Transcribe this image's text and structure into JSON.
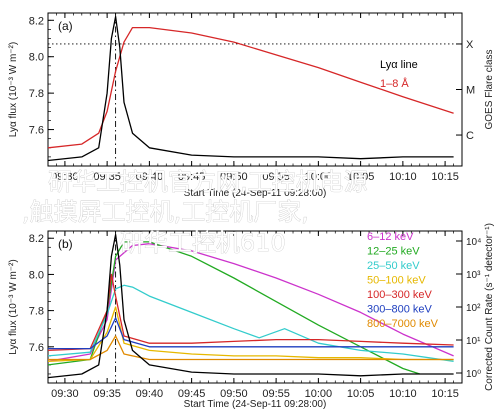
{
  "chart_data": [
    {
      "type": "line",
      "panel_label": "(a)",
      "ylabel": "Lyα flux (10⁻³ W m⁻²)",
      "y_right_label": "GOES Flare class",
      "xlabel": "Start Time (24-Sep-11 09:28:00)",
      "x_tick_labels": [
        "09:30",
        "09:35",
        "09:40",
        "09:45",
        "09:50",
        "09:55",
        "10:00",
        "10:05",
        "10:10",
        "10:15"
      ],
      "xlim": [
        "09:28",
        "10:17"
      ],
      "ylim": [
        7.4,
        8.24
      ],
      "y_ticks": [
        "7.6",
        "7.8",
        "8.0",
        "8.2"
      ],
      "y_right_ticks": [
        "X",
        "M",
        "C"
      ],
      "flare_peak_marker": "09:36",
      "dotted_reference_level": 8.07,
      "legend": [
        {
          "label": "Lyα line",
          "color": "#000000"
        },
        {
          "label": "1–8 Å",
          "color": "#d62728"
        }
      ],
      "series": [
        {
          "name": "Lyα line",
          "color": "#000000",
          "x": [
            "09:28",
            "09:32",
            "09:34",
            "09:35",
            "09:35.5",
            "09:36",
            "09:36.5",
            "09:37",
            "09:38",
            "09:40",
            "09:45",
            "09:50",
            "09:55",
            "10:00",
            "10:05",
            "10:10",
            "10:16"
          ],
          "y": [
            7.43,
            7.45,
            7.5,
            7.8,
            8.1,
            8.22,
            8.05,
            7.75,
            7.58,
            7.5,
            7.46,
            7.45,
            7.45,
            7.45,
            7.44,
            7.45,
            7.45
          ]
        },
        {
          "name": "1–8 Å",
          "color": "#d62728",
          "x": [
            "09:28",
            "09:32",
            "09:34",
            "09:35",
            "09:36",
            "09:37",
            "09:38",
            "09:40",
            "09:45",
            "09:50",
            "09:55",
            "10:00",
            "10:05",
            "10:10",
            "10:16"
          ],
          "y": [
            7.5,
            7.52,
            7.58,
            7.7,
            7.92,
            8.08,
            8.16,
            8.16,
            8.13,
            8.08,
            8.01,
            7.94,
            7.86,
            7.78,
            7.69
          ]
        }
      ]
    },
    {
      "type": "line",
      "panel_label": "(b)",
      "ylabel": "Lyα flux (10⁻³ W m⁻²)",
      "y_right_label": "Corrected Count Rate (s⁻¹ detector⁻¹)",
      "xlabel": "Start Time (24-Sep-11 09:28:00)",
      "x_tick_labels": [
        "09:30",
        "09:35",
        "09:40",
        "09:45",
        "09:50",
        "09:55",
        "10:00",
        "10:05",
        "10:10",
        "10:15"
      ],
      "xlim": [
        "09:28",
        "10:17"
      ],
      "ylim": [
        7.4,
        8.24
      ],
      "y_ticks": [
        "7.6",
        "7.8",
        "8.0",
        "8.2"
      ],
      "y_right_ticks": [
        "10⁴",
        "10³",
        "10²",
        "10¹",
        "10⁰"
      ],
      "flare_peak_marker": "09:36",
      "legend": [
        {
          "label": "6–12 keV",
          "color": "#cc33cc"
        },
        {
          "label": "12–25 keV",
          "color": "#22aa22"
        },
        {
          "label": "25–50 keV",
          "color": "#33cccc"
        },
        {
          "label": "50–100 keV",
          "color": "#e6b800"
        },
        {
          "label": "100–300 keV",
          "color": "#d62728"
        },
        {
          "label": "300–800 keV",
          "color": "#1f3fbf"
        },
        {
          "label": "800–7000 keV",
          "color": "#e08a00"
        }
      ],
      "series": [
        {
          "name": "Lyα line",
          "color": "#000000",
          "x": [
            "09:28",
            "09:32",
            "09:34",
            "09:35",
            "09:35.5",
            "09:36",
            "09:36.5",
            "09:37",
            "09:38",
            "09:40",
            "09:45",
            "09:50",
            "09:55",
            "10:00",
            "10:05",
            "10:10",
            "10:16"
          ],
          "y": [
            7.43,
            7.45,
            7.5,
            7.8,
            8.1,
            8.22,
            8.05,
            7.75,
            7.58,
            7.5,
            7.46,
            7.45,
            7.45,
            7.45,
            7.44,
            7.45,
            7.45
          ]
        },
        {
          "name": "6–12 keV",
          "color": "#cc33cc",
          "x": [
            "09:28",
            "09:33",
            "09:35",
            "09:36",
            "09:38",
            "09:40",
            "09:45",
            "09:50",
            "09:55",
            "10:00",
            "10:05",
            "10:10",
            "10:16"
          ],
          "y": [
            7.52,
            7.56,
            7.75,
            8.08,
            8.16,
            8.17,
            8.13,
            8.06,
            7.98,
            7.89,
            7.79,
            7.67,
            7.55
          ]
        },
        {
          "name": "12–25 keV",
          "color": "#22aa22",
          "x": [
            "09:28",
            "09:33",
            "09:35",
            "09:36",
            "09:37",
            "09:40",
            "09:45",
            "09:50",
            "09:55",
            "10:00",
            "10:05",
            "10:10",
            "10:12"
          ],
          "y": [
            7.5,
            7.53,
            7.8,
            8.1,
            8.18,
            8.18,
            8.1,
            7.98,
            7.85,
            7.72,
            7.6,
            7.48,
            7.45
          ]
        },
        {
          "name": "25–50 keV",
          "color": "#33cccc",
          "x": [
            "09:28",
            "09:33",
            "09:35",
            "09:36",
            "09:37",
            "09:38",
            "09:40",
            "09:45",
            "09:50",
            "09:53",
            "09:56",
            "10:00",
            "10:05",
            "10:10",
            "10:16"
          ],
          "y": [
            7.55,
            7.57,
            7.78,
            7.92,
            7.94,
            7.93,
            7.88,
            7.79,
            7.7,
            7.65,
            7.7,
            7.62,
            7.58,
            7.56,
            7.52
          ]
        },
        {
          "name": "50–100 keV",
          "color": "#e6b800",
          "x": [
            "09:28",
            "09:33",
            "09:35",
            "09:36",
            "09:37",
            "09:40",
            "09:45",
            "09:50",
            "09:55",
            "10:00",
            "10:05",
            "10:10",
            "10:16"
          ],
          "y": [
            7.52,
            7.53,
            7.68,
            7.82,
            7.62,
            7.58,
            7.56,
            7.55,
            7.55,
            7.54,
            7.54,
            7.53,
            7.53
          ]
        },
        {
          "name": "100–300 keV",
          "color": "#d62728",
          "x": [
            "09:28",
            "09:33",
            "09:35",
            "09:35.5",
            "09:36",
            "09:37",
            "09:40",
            "09:45",
            "09:50",
            "09:55",
            "10:00",
            "10:05",
            "10:10",
            "10:16"
          ],
          "y": [
            7.58,
            7.59,
            7.8,
            8.0,
            7.88,
            7.66,
            7.62,
            7.62,
            7.63,
            7.64,
            7.64,
            7.63,
            7.62,
            7.61
          ]
        },
        {
          "name": "300–800 keV",
          "color": "#1f3fbf",
          "x": [
            "09:28",
            "09:33",
            "09:35",
            "09:36",
            "09:37",
            "09:40",
            "09:45",
            "09:50",
            "09:55",
            "10:00",
            "10:05",
            "10:10",
            "10:16"
          ],
          "y": [
            7.59,
            7.59,
            7.66,
            7.76,
            7.64,
            7.6,
            7.6,
            7.6,
            7.6,
            7.6,
            7.6,
            7.6,
            7.6
          ]
        },
        {
          "name": "800–7000 keV",
          "color": "#e08a00",
          "x": [
            "09:28",
            "09:33",
            "09:35",
            "09:36",
            "09:37",
            "09:40",
            "09:45",
            "09:50",
            "09:55",
            "10:00",
            "10:05",
            "10:10",
            "10:16"
          ],
          "y": [
            7.53,
            7.53,
            7.58,
            7.66,
            7.56,
            7.53,
            7.53,
            7.53,
            7.53,
            7.53,
            7.53,
            7.53,
            7.53
          ]
        }
      ]
    }
  ],
  "watermark": {
    "line1": "研华工控机官方网,工控机电源",
    "line2": ",触摸屏工控机,工控机厂家,",
    "line3": "研华工控机610"
  }
}
